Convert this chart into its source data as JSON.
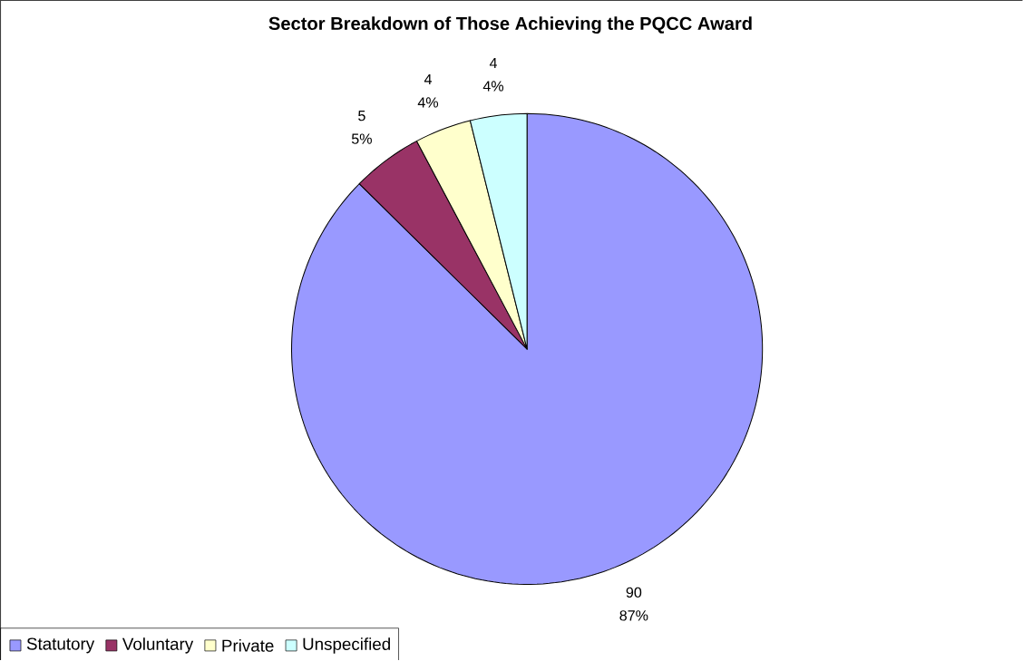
{
  "chart_data": {
    "type": "pie",
    "title": "Sector Breakdown of Those Achieving the PQCC Award",
    "categories": [
      "Statutory",
      "Voluntary",
      "Private",
      "Unspecified"
    ],
    "values": [
      90,
      5,
      4,
      4
    ],
    "colors": [
      "#9999ff",
      "#993366",
      "#ffffcc",
      "#ccffff"
    ],
    "value_labels": [
      "90\n87%",
      "5\n5%",
      "4\n4%",
      "4\n4%"
    ],
    "legend": "bottom left"
  }
}
